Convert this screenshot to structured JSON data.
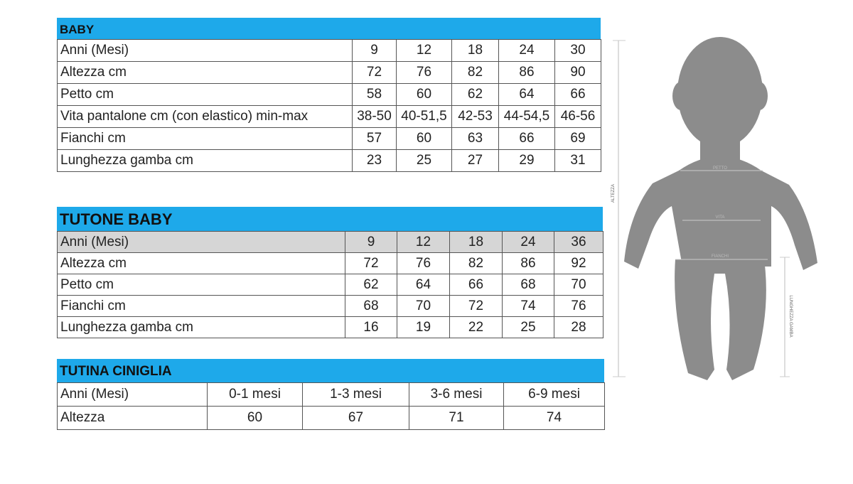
{
  "baby": {
    "title": "BABY",
    "rows": [
      [
        "Anni (Mesi)",
        "9",
        "12",
        "18",
        "24",
        "30"
      ],
      [
        "Altezza cm",
        "72",
        "76",
        "82",
        "86",
        "90"
      ],
      [
        "Petto cm",
        "58",
        "60",
        "62",
        "64",
        "66"
      ],
      [
        "Vita pantalone cm (con elastico) min-max",
        "38-50",
        "40-51,5",
        "42-53",
        "44-54,5",
        "46-56"
      ],
      [
        "Fianchi cm",
        "57",
        "60",
        "63",
        "66",
        "69"
      ],
      [
        "Lunghezza gamba cm",
        "23",
        "25",
        "27",
        "29",
        "31"
      ]
    ]
  },
  "tutone": {
    "title": "TUTONE BABY",
    "rows": [
      [
        "Anni (Mesi)",
        "9",
        "12",
        "18",
        "24",
        "36"
      ],
      [
        "Altezza cm",
        "72",
        "76",
        "82",
        "86",
        "92"
      ],
      [
        "Petto cm",
        "62",
        "64",
        "66",
        "68",
        "70"
      ],
      [
        "Fianchi cm",
        "68",
        "70",
        "72",
        "74",
        "76"
      ],
      [
        "Lunghezza gamba cm",
        "16",
        "19",
        "22",
        "25",
        "28"
      ]
    ]
  },
  "tutina": {
    "title": "TUTINA CINIGLIA",
    "rows": [
      [
        "Anni (Mesi)",
        "0-1 mesi",
        "1-3 mesi",
        "3-6 mesi",
        "6-9 mesi"
      ],
      [
        "Altezza",
        "60",
        "67",
        "71",
        "74"
      ]
    ]
  },
  "figure": {
    "altezza": "ALTEZZA",
    "petto": "PETTO",
    "vita": "VITA",
    "fianchi": "FIANCHI",
    "gamba": "LUNGHEZZA GAMBA"
  },
  "colors": {
    "header": "#1ea9ea",
    "silhouette": "#8c8c8c"
  }
}
